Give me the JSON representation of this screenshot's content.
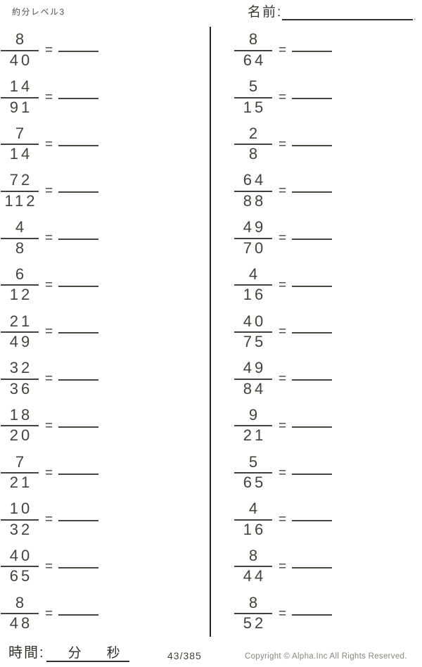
{
  "header": {
    "title": "約分レベル3",
    "name_label": "名前:",
    "name_line_end": "."
  },
  "equals_sign": "=",
  "problems": {
    "left": [
      {
        "numerator": "8",
        "denominator": "40"
      },
      {
        "numerator": "14",
        "denominator": "91"
      },
      {
        "numerator": "7",
        "denominator": "14"
      },
      {
        "numerator": "72",
        "denominator": "112"
      },
      {
        "numerator": "4",
        "denominator": "8"
      },
      {
        "numerator": "6",
        "denominator": "12"
      },
      {
        "numerator": "21",
        "denominator": "49"
      },
      {
        "numerator": "32",
        "denominator": "36"
      },
      {
        "numerator": "18",
        "denominator": "20"
      },
      {
        "numerator": "7",
        "denominator": "21"
      },
      {
        "numerator": "10",
        "denominator": "32"
      },
      {
        "numerator": "40",
        "denominator": "65"
      },
      {
        "numerator": "8",
        "denominator": "48"
      }
    ],
    "right": [
      {
        "numerator": "8",
        "denominator": "64"
      },
      {
        "numerator": "5",
        "denominator": "15"
      },
      {
        "numerator": "2",
        "denominator": "8"
      },
      {
        "numerator": "64",
        "denominator": "88"
      },
      {
        "numerator": "49",
        "denominator": "70"
      },
      {
        "numerator": "4",
        "denominator": "16"
      },
      {
        "numerator": "40",
        "denominator": "75"
      },
      {
        "numerator": "49",
        "denominator": "84"
      },
      {
        "numerator": "9",
        "denominator": "21"
      },
      {
        "numerator": "5",
        "denominator": "65"
      },
      {
        "numerator": "4",
        "denominator": "16"
      },
      {
        "numerator": "8",
        "denominator": "44"
      },
      {
        "numerator": "8",
        "denominator": "52"
      }
    ]
  },
  "footer": {
    "time_label": "時間:",
    "minutes_label": "分",
    "seconds_label": "秒",
    "page_indicator": "43/385",
    "copyright": "Copyright ©  Alpha.Inc All Rights Reserved."
  },
  "colors": {
    "ink": "#45403a",
    "muted_text": "#8a857f",
    "divider": "#24211e"
  }
}
